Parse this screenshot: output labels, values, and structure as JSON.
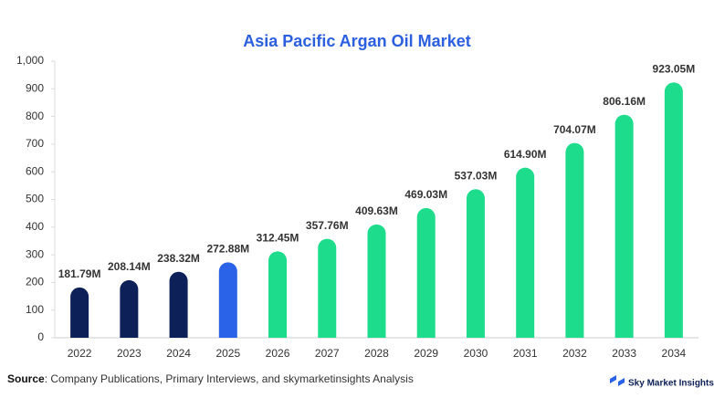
{
  "chart_data": {
    "type": "bar",
    "title": "Asia Pacific Argan Oil Market",
    "categories": [
      "2022",
      "2023",
      "2024",
      "2025",
      "2026",
      "2027",
      "2028",
      "2029",
      "2030",
      "2031",
      "2032",
      "2033",
      "2034"
    ],
    "values": [
      181.79,
      208.14,
      238.32,
      272.88,
      312.45,
      357.76,
      409.63,
      469.03,
      537.03,
      614.9,
      704.07,
      806.16,
      923.05
    ],
    "value_labels": [
      "181.79M",
      "208.14M",
      "238.32M",
      "272.88M",
      "312.45M",
      "357.76M",
      "409.63M",
      "469.03M",
      "537.03M",
      "614.90M",
      "704.07M",
      "806.16M",
      "923.05M"
    ],
    "colors": [
      "#0d2158",
      "#0d2158",
      "#0d2158",
      "#2a62e8",
      "#1ddc8c",
      "#1ddc8c",
      "#1ddc8c",
      "#1ddc8c",
      "#1ddc8c",
      "#1ddc8c",
      "#1ddc8c",
      "#1ddc8c",
      "#1ddc8c"
    ],
    "ylim": [
      0,
      1000
    ],
    "yticks": [
      0,
      100,
      200,
      300,
      400,
      500,
      600,
      700,
      800,
      900,
      {
        "value": 1000,
        "label": "1,000"
      }
    ],
    "grid": false,
    "source_label": "Source",
    "source_text": ": Company Publications, Primary Interviews, and skymarketinsights Analysis",
    "brand": "Sky Market Insights"
  }
}
